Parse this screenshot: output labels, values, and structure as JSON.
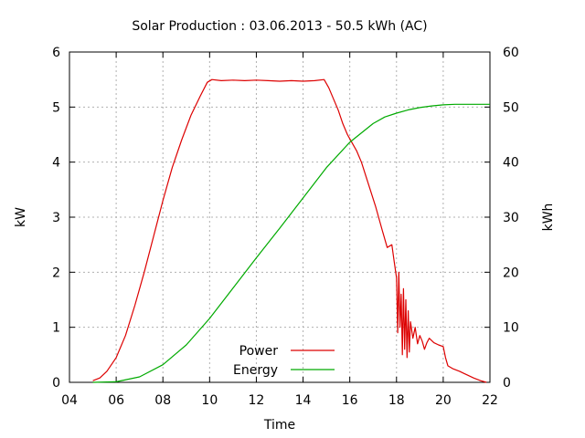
{
  "chart_data": {
    "type": "line",
    "title": "Solar Production : 03.06.2013 - 50.5 kWh (AC)",
    "xlabel": "Time",
    "ylabel": "kW",
    "y2label": "kWh",
    "xlim": [
      4,
      22
    ],
    "ylim": [
      0,
      6
    ],
    "y2lim": [
      0,
      60
    ],
    "x_ticks": [
      "04",
      "06",
      "08",
      "10",
      "12",
      "14",
      "16",
      "18",
      "20",
      "22"
    ],
    "y_ticks": [
      "0",
      "1",
      "2",
      "3",
      "4",
      "5",
      "6"
    ],
    "y2_ticks": [
      "0",
      "10",
      "20",
      "30",
      "40",
      "50",
      "60"
    ],
    "grid": true,
    "legend_position": "bottom-center",
    "colors": {
      "Power": "#dd0000",
      "Energy": "#00aa00"
    },
    "series": [
      {
        "name": "Power",
        "axis": "left",
        "x": [
          5.0,
          5.3,
          5.6,
          6.0,
          6.4,
          6.8,
          7.2,
          7.6,
          8.0,
          8.4,
          8.8,
          9.2,
          9.6,
          9.9,
          10.1,
          10.5,
          11.0,
          11.5,
          12.0,
          12.5,
          13.0,
          13.5,
          14.0,
          14.5,
          14.9,
          15.1,
          15.3,
          15.5,
          15.7,
          15.9,
          16.1,
          16.3,
          16.5,
          16.8,
          17.1,
          17.4,
          17.6,
          17.8,
          17.9,
          18.0,
          18.05,
          18.1,
          18.15,
          18.2,
          18.25,
          18.3,
          18.35,
          18.4,
          18.45,
          18.5,
          18.55,
          18.6,
          18.7,
          18.8,
          18.9,
          19.0,
          19.1,
          19.2,
          19.3,
          19.4,
          19.6,
          19.8,
          20.0,
          20.1,
          20.2,
          20.4,
          20.7,
          21.0,
          21.3,
          21.6,
          21.85
        ],
        "y": [
          0.03,
          0.08,
          0.2,
          0.45,
          0.85,
          1.4,
          2.0,
          2.65,
          3.3,
          3.9,
          4.4,
          4.85,
          5.2,
          5.45,
          5.5,
          5.48,
          5.49,
          5.48,
          5.49,
          5.48,
          5.47,
          5.48,
          5.47,
          5.48,
          5.5,
          5.35,
          5.15,
          4.95,
          4.7,
          4.5,
          4.35,
          4.2,
          4.0,
          3.6,
          3.2,
          2.75,
          2.45,
          2.5,
          2.2,
          1.9,
          0.9,
          2.0,
          1.0,
          1.6,
          0.5,
          1.7,
          0.6,
          1.5,
          0.45,
          1.3,
          0.55,
          1.1,
          0.8,
          1.0,
          0.7,
          0.85,
          0.75,
          0.6,
          0.72,
          0.8,
          0.72,
          0.68,
          0.65,
          0.45,
          0.3,
          0.25,
          0.2,
          0.14,
          0.08,
          0.03,
          0.0
        ]
      },
      {
        "name": "Energy",
        "axis": "right",
        "x": [
          5.0,
          6.0,
          7.0,
          8.0,
          9.0,
          10.0,
          11.0,
          12.0,
          13.0,
          14.0,
          15.0,
          16.0,
          17.0,
          17.5,
          18.0,
          18.5,
          19.0,
          19.5,
          20.0,
          20.5,
          21.0,
          22.0
        ],
        "y": [
          0.0,
          0.1,
          1.0,
          3.2,
          6.8,
          11.6,
          17.1,
          22.6,
          28.0,
          33.5,
          39.0,
          43.6,
          47.0,
          48.2,
          48.9,
          49.5,
          49.9,
          50.2,
          50.4,
          50.5,
          50.5,
          50.5
        ]
      }
    ]
  }
}
